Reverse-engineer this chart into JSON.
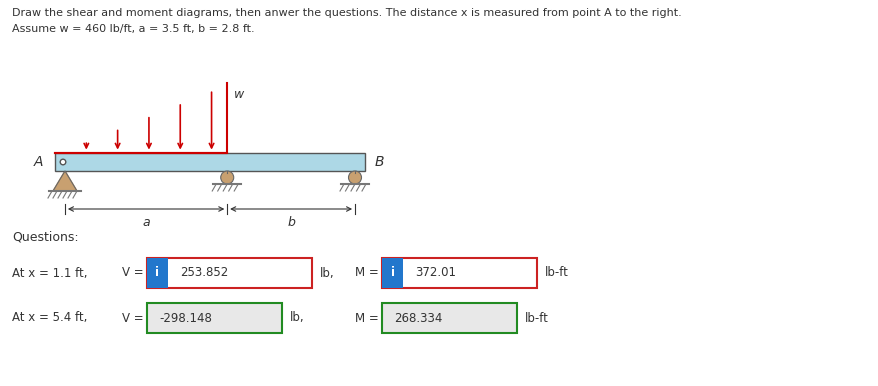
{
  "title_line1": "Draw the shear and moment diagrams, then anwer the questions. The distance x is measured from point A to the right.",
  "title_line2": "Assume w = 460 lb/ft, a = 3.5 ft, b = 2.8 ft.",
  "questions_label": "Questions:",
  "row1_label": "At x = 1.1 ft,",
  "row1_V_label": "V =",
  "row1_V_value": "253.852",
  "row1_V_unit": "lb,",
  "row1_M_label": "M =",
  "row1_M_value": "372.01",
  "row1_M_unit": "lb-ft",
  "row2_label": "At x = 5.4 ft,",
  "row2_V_label": "V =",
  "row2_V_value": "-298.148",
  "row2_V_unit": "lb,",
  "row2_M_label": "M =",
  "row2_M_value": "268.334",
  "row2_M_unit": "lb-ft",
  "beam_color": "#add8e6",
  "beam_border": "#555555",
  "load_color": "#cc0000",
  "support_color": "#c8a070",
  "ground_color": "#888888",
  "box1_face": "#ffffff",
  "box1_edge": "#cc2222",
  "box2_face": "#e8e8e8",
  "box2_edge": "#228B22",
  "info_bg": "#2277cc",
  "info_fg": "#ffffff",
  "dim_color": "#333333",
  "label_a": "a",
  "label_b": "b",
  "label_w": "w",
  "label_A": "A",
  "label_B": "B",
  "fig_w": 8.79,
  "fig_h": 3.86
}
